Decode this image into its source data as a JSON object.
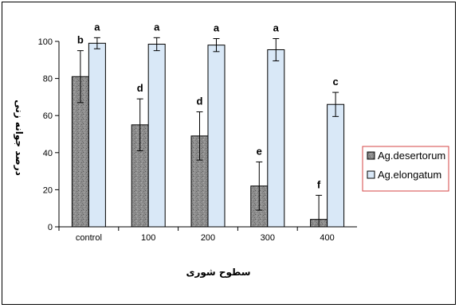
{
  "chart_data": {
    "type": "bar",
    "title": "",
    "xlabel": "سطوح شوری",
    "ylabel": "درصد جوانه زنی",
    "categories": [
      "control",
      "100",
      "200",
      "300",
      "400"
    ],
    "ylim": [
      0,
      100
    ],
    "yticks": [
      "0",
      "20",
      "40",
      "60",
      "80",
      "100"
    ],
    "grid": false,
    "legend_position": "right",
    "series": [
      {
        "name": "Ag.desertorum",
        "values": [
          81,
          55,
          49,
          22,
          4
        ],
        "errors": [
          14,
          14,
          13,
          13,
          13
        ],
        "letters": [
          "b",
          "d",
          "d",
          "e",
          "f"
        ],
        "color": "#8c8c8c"
      },
      {
        "name": "Ag.elongatum",
        "values": [
          99,
          98.5,
          98,
          95.5,
          66
        ],
        "errors": [
          3,
          3.5,
          3.5,
          6,
          6.5
        ],
        "letters": [
          "a",
          "a",
          "a",
          "a",
          "c"
        ],
        "color": "#d9e8f7"
      }
    ]
  }
}
